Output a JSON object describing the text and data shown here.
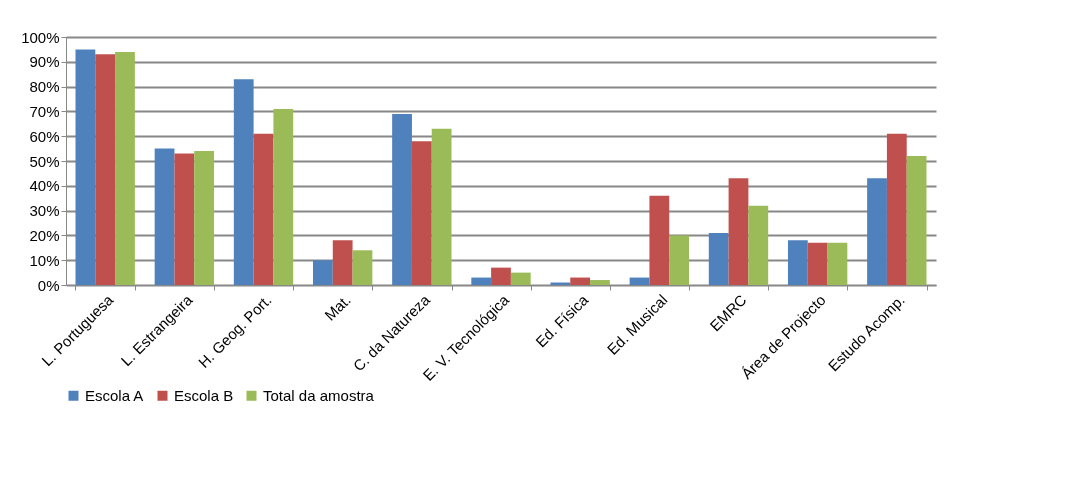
{
  "chart_data": {
    "type": "bar",
    "categories": [
      "L. Portuguesa",
      "L. Estrangeira",
      "H. Geog. Port.",
      "Mat.",
      "C. da Natureza",
      "E. V. Tecnológica",
      "Ed. Física",
      "Ed. Musical",
      "EMRC",
      "Área de Projecto",
      "Estudo Acomp."
    ],
    "series": [
      {
        "name": "Escola A",
        "color": "#4f81bd",
        "values": [
          95,
          55,
          83,
          10,
          69,
          3,
          1,
          3,
          21,
          18,
          43
        ]
      },
      {
        "name": "Escola B",
        "color": "#c0504d",
        "values": [
          93,
          53,
          61,
          18,
          58,
          7,
          3,
          36,
          43,
          17,
          61
        ]
      },
      {
        "name": "Total da amostra",
        "color": "#9bbb59",
        "values": [
          94,
          54,
          71,
          14,
          63,
          5,
          2,
          20,
          32,
          17,
          52
        ]
      }
    ],
    "ylim": [
      0,
      100
    ],
    "yticks": [
      {
        "value": 0,
        "label": "0%"
      },
      {
        "value": 10,
        "label": "10%"
      },
      {
        "value": 20,
        "label": "20%"
      },
      {
        "value": 30,
        "label": "30%"
      },
      {
        "value": 40,
        "label": "40%"
      },
      {
        "value": 50,
        "label": "50%"
      },
      {
        "value": 60,
        "label": "60%"
      },
      {
        "value": 70,
        "label": "70%"
      },
      {
        "value": 80,
        "label": "80%"
      },
      {
        "value": 90,
        "label": "90%"
      },
      {
        "value": 100,
        "label": "100%"
      }
    ],
    "grid": "y",
    "legend": "bottom"
  }
}
